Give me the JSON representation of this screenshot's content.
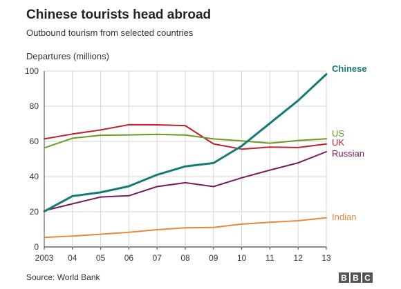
{
  "chart_data": {
    "type": "line",
    "title": "Chinese tourists head abroad",
    "subtitle": "Outbound tourism from selected countries",
    "ylabel": "Departures (millions)",
    "xlabel": "",
    "x": [
      2003,
      2004,
      2005,
      2006,
      2007,
      2008,
      2009,
      2010,
      2011,
      2012,
      2013
    ],
    "x_tick_labels": [
      "2003",
      "04",
      "05",
      "06",
      "07",
      "08",
      "09",
      "10",
      "11",
      "12",
      "13"
    ],
    "ylim": [
      0,
      100
    ],
    "y_ticks": [
      0,
      20,
      40,
      60,
      80,
      100
    ],
    "grid": "vertical",
    "series": [
      {
        "name": "Chinese",
        "color": "#147a77",
        "bold": true,
        "values": [
          20.2,
          28.9,
          31.0,
          34.5,
          41.0,
          45.8,
          47.7,
          57.4,
          70.3,
          83.2,
          98.2
        ]
      },
      {
        "name": "US",
        "color": "#6b9a1e",
        "values": [
          56.3,
          61.8,
          63.5,
          63.7,
          64.0,
          63.6,
          61.4,
          60.3,
          59.0,
          60.5,
          61.5
        ]
      },
      {
        "name": "UK",
        "color": "#c0202a",
        "values": [
          61.4,
          64.2,
          66.5,
          69.5,
          69.4,
          69.0,
          58.6,
          55.6,
          56.8,
          56.5,
          58.5
        ]
      },
      {
        "name": "Russian",
        "color": "#7a1a5c",
        "values": [
          20.6,
          24.5,
          28.4,
          29.1,
          34.3,
          36.5,
          34.3,
          39.3,
          43.7,
          47.8,
          54.1
        ]
      },
      {
        "name": "Indian",
        "color": "#e8883a",
        "values": [
          5.4,
          6.2,
          7.2,
          8.3,
          9.8,
          10.9,
          11.1,
          13.0,
          14.0,
          14.9,
          16.6
        ]
      }
    ]
  },
  "source": "Source: World Bank",
  "logo": {
    "letters": [
      "B",
      "B",
      "C"
    ]
  }
}
